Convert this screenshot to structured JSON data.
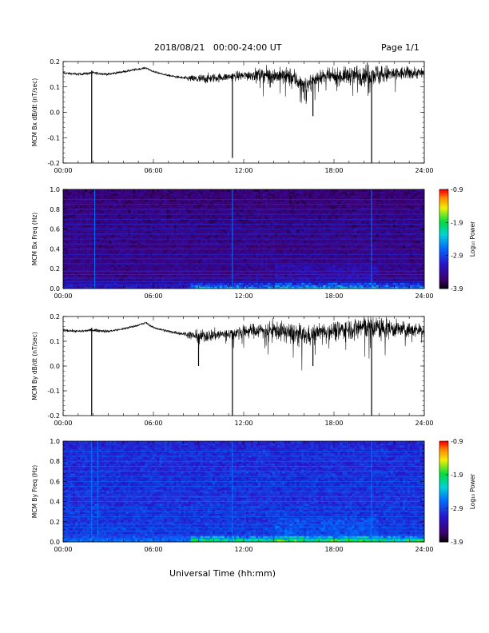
{
  "header": {
    "title": "2018/08/21   00:00-24:00 UT",
    "page": "Page 1/1"
  },
  "xaxis_label": "Universal Time (hh:mm)",
  "chart_data": [
    {
      "type": "line",
      "ylabel": "MCM Bx dB/dt (nT/sec)",
      "xlim": [
        "00:00",
        "24:00"
      ],
      "ylim": [
        -0.2,
        0.2
      ],
      "xticks": [
        "00:00",
        "06:00",
        "12:00",
        "18:00",
        "24:00"
      ],
      "yticks": [
        "-0.2",
        "-0.1",
        "0.0",
        "0.1",
        "0.2"
      ],
      "series": [
        {
          "x_hours": [
            0,
            1,
            2,
            3,
            4,
            5,
            5.5,
            6,
            7,
            8,
            9,
            10,
            11,
            12,
            13,
            14,
            15,
            15.5,
            16,
            16.5,
            17,
            18,
            19,
            20,
            21,
            22,
            23,
            24
          ],
          "y": [
            0.155,
            0.15,
            0.155,
            0.15,
            0.16,
            0.17,
            0.175,
            0.16,
            0.145,
            0.135,
            0.13,
            0.135,
            0.14,
            0.145,
            0.15,
            0.145,
            0.14,
            0.13,
            0.1,
            0.12,
            0.14,
            0.14,
            0.145,
            0.15,
            0.15,
            0.15,
            0.155,
            0.155
          ],
          "noise": [
            0.005,
            0.005,
            0.006,
            0.005,
            0.005,
            0.004,
            0.004,
            0.004,
            0.004,
            0.006,
            0.02,
            0.018,
            0.015,
            0.02,
            0.025,
            0.03,
            0.035,
            0.04,
            0.035,
            0.03,
            0.025,
            0.03,
            0.035,
            0.045,
            0.04,
            0.03,
            0.025,
            0.02
          ],
          "spikes": [
            {
              "x_hours": 1.9,
              "y": -0.2
            },
            {
              "x_hours": 11.25,
              "y": -0.18
            },
            {
              "x_hours": 16.6,
              "y": -0.015
            },
            {
              "x_hours": 20.5,
              "y": -0.2
            }
          ]
        }
      ]
    },
    {
      "type": "heatmap",
      "ylabel": "MCM Bx Freq (Hz)",
      "xlim": [
        "00:00",
        "24:00"
      ],
      "ylim": [
        0.0,
        1.0
      ],
      "xticks": [
        "00:00",
        "06:00",
        "12:00",
        "18:00",
        "24:00"
      ],
      "yticks": [
        "0.0",
        "0.2",
        "0.4",
        "0.6",
        "0.8",
        "1.0"
      ],
      "colorbar": {
        "label": "Log₁₀ Power",
        "ticks": [
          "-0.9",
          "-1.9",
          "-2.9",
          "-3.9"
        ],
        "range": [
          -3.9,
          -0.9
        ]
      },
      "base_level": -3.55,
      "lines_hz": [
        0.035,
        0.07,
        0.105,
        0.14,
        0.175,
        0.25,
        0.3,
        0.345,
        0.4,
        0.45,
        0.5,
        0.55,
        0.6,
        0.65,
        0.7,
        0.75,
        0.8,
        0.85,
        0.9
      ],
      "line_level": -3.0,
      "vlines_hours": [
        2.1,
        11.25,
        20.5
      ],
      "colors": {
        "low": "#26004d",
        "high": "#ff0000"
      }
    },
    {
      "type": "line",
      "ylabel": "MCM By dB/dt (nT/sec)",
      "xlim": [
        "00:00",
        "24:00"
      ],
      "ylim": [
        -0.2,
        0.2
      ],
      "xticks": [
        "00:00",
        "06:00",
        "12:00",
        "18:00",
        "24:00"
      ],
      "yticks": [
        "-0.2",
        "-0.1",
        "0.0",
        "0.1",
        "0.2"
      ],
      "series": [
        {
          "x_hours": [
            0,
            1,
            2,
            3,
            4,
            5,
            5.5,
            6,
            7,
            8,
            9,
            10,
            11,
            12,
            13,
            14,
            15,
            15.5,
            16,
            16.5,
            17,
            18,
            19,
            20,
            21,
            22,
            23,
            24
          ],
          "y": [
            0.145,
            0.14,
            0.145,
            0.14,
            0.15,
            0.165,
            0.175,
            0.155,
            0.14,
            0.13,
            0.12,
            0.125,
            0.13,
            0.14,
            0.145,
            0.145,
            0.135,
            0.13,
            0.12,
            0.125,
            0.14,
            0.145,
            0.15,
            0.16,
            0.155,
            0.15,
            0.145,
            0.145
          ],
          "noise": [
            0.005,
            0.005,
            0.006,
            0.005,
            0.005,
            0.004,
            0.004,
            0.004,
            0.005,
            0.008,
            0.025,
            0.025,
            0.02,
            0.025,
            0.03,
            0.035,
            0.04,
            0.045,
            0.04,
            0.035,
            0.03,
            0.035,
            0.04,
            0.05,
            0.045,
            0.035,
            0.03,
            0.025
          ],
          "spikes": [
            {
              "x_hours": 1.9,
              "y": -0.2
            },
            {
              "x_hours": 9.0,
              "y": 0.0
            },
            {
              "x_hours": 11.25,
              "y": -0.2
            },
            {
              "x_hours": 16.6,
              "y": 0.0
            },
            {
              "x_hours": 20.5,
              "y": -0.2
            }
          ]
        }
      ]
    },
    {
      "type": "heatmap",
      "ylabel": "MCM By Freq (Hz)",
      "xlim": [
        "00:00",
        "24:00"
      ],
      "ylim": [
        0.0,
        1.0
      ],
      "xticks": [
        "00:00",
        "06:00",
        "12:00",
        "18:00",
        "24:00"
      ],
      "yticks": [
        "0.0",
        "0.2",
        "0.4",
        "0.6",
        "0.8",
        "1.0"
      ],
      "colorbar": {
        "label": "Log₁₀ Power",
        "ticks": [
          "-0.9",
          "-1.9",
          "-2.9",
          "-3.9"
        ],
        "range": [
          -3.9,
          -0.9
        ]
      },
      "base_level": -3.05,
      "lines_hz": [
        0.035,
        0.07,
        0.105,
        0.14,
        0.175,
        0.25,
        0.3,
        0.345,
        0.4,
        0.45,
        0.5,
        0.55,
        0.6,
        0.65,
        0.7,
        0.75,
        0.8,
        0.85,
        0.9
      ],
      "line_level": -2.7,
      "vlines_hours": [
        1.9,
        2.3,
        11.25,
        20.5
      ],
      "colors": {
        "low": "#26004d",
        "high": "#ff0000"
      }
    }
  ]
}
